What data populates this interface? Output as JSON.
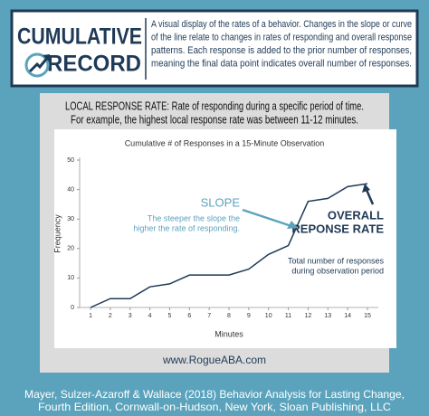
{
  "header": {
    "logo": [
      "CUMULATIVE",
      "RECORD"
    ],
    "description": [
      "A visual display of the rates of a behavior. Changes in the slope or curve",
      "of the line relate to changes in rates of responding and overall response",
      "patterns. Each response is added to the prior number of responses,",
      "meaning the final data point indicates overall number of responses."
    ]
  },
  "intro": [
    "LOCAL RESPONSE RATE:  Rate of responding during a specific period of time.",
    "For example, the highest local response rate was between 11-12 minutes."
  ],
  "chart_data": {
    "type": "line",
    "title": "Cumulative # of Responses in a 15-Minute Observation",
    "x_label": "Minutes",
    "y_label": "Frequency",
    "x": [
      1,
      2,
      3,
      4,
      5,
      6,
      7,
      8,
      9,
      10,
      11,
      12,
      13,
      14,
      15
    ],
    "values": [
      0,
      3,
      3,
      7,
      8,
      11,
      11,
      11,
      13,
      18,
      21,
      36,
      37,
      41,
      42
    ],
    "color": "#1f3a56",
    "xlim": [
      0.45,
      15.55
    ],
    "xticks": [
      1,
      2,
      3,
      4,
      5,
      6,
      7,
      8,
      9,
      10,
      11,
      12,
      13,
      14,
      15
    ],
    "ylim": [
      0,
      50
    ],
    "yticks": [
      0,
      10,
      20,
      30,
      40,
      50
    ],
    "annotations": {
      "slope": "SLOPE",
      "slope_note": [
        "The steeper the slope the",
        "higher the rate of responding."
      ],
      "overall": [
        "OVERALL",
        "REPONSE RATE"
      ],
      "overall_note": [
        "Total number of responses",
        "during observation period"
      ]
    }
  },
  "footer": {
    "url": "www.RogueABA.com",
    "citation": [
      "Mayer, Sulzer-Azaroff & Wallace (2018) Behavior Analysis for Lasting Change,",
      "Fourth Edition, Cornwall-on-Hudson, New York, Sloan Publishing, LLC"
    ]
  }
}
